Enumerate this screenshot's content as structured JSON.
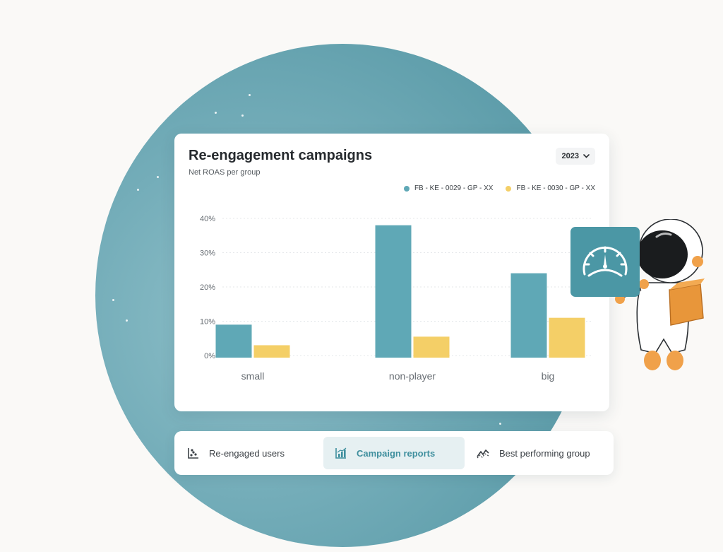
{
  "card": {
    "title": "Re-engagement campaigns",
    "subtitle": "Net ROAS per group",
    "year_select": {
      "value": "2023",
      "icon": "chevron-down-icon"
    }
  },
  "chart_data": {
    "type": "bar",
    "categories": [
      "small",
      "non-player",
      "big"
    ],
    "series": [
      {
        "name": "FB - KE - 0029 - GP - XX",
        "color": "#5fa8b6",
        "values": [
          9,
          38,
          24
        ]
      },
      {
        "name": "FB - KE - 0030 - GP - XX",
        "color": "#f4cf67",
        "values": [
          3,
          5.5,
          11
        ]
      }
    ],
    "yticks": [
      "0%",
      "10%",
      "20%",
      "30%",
      "40%"
    ],
    "ylim": [
      0,
      40
    ],
    "grid": true,
    "legend": "top-right"
  },
  "tabs": [
    {
      "label": "Re-engaged users",
      "icon": "scatter-chart-icon",
      "active": false
    },
    {
      "label": "Campaign reports",
      "icon": "bar-chart-icon",
      "active": true
    },
    {
      "label": "Best performing group",
      "icon": "trend-line-icon",
      "active": false
    }
  ],
  "colors": {
    "planet": "#6aa9b5",
    "accent": "#3f8f9e",
    "tab_active_bg": "#e6f0f2"
  },
  "illustration": {
    "name": "astronaut holding gauge sign",
    "icon": "speedometer-icon"
  }
}
